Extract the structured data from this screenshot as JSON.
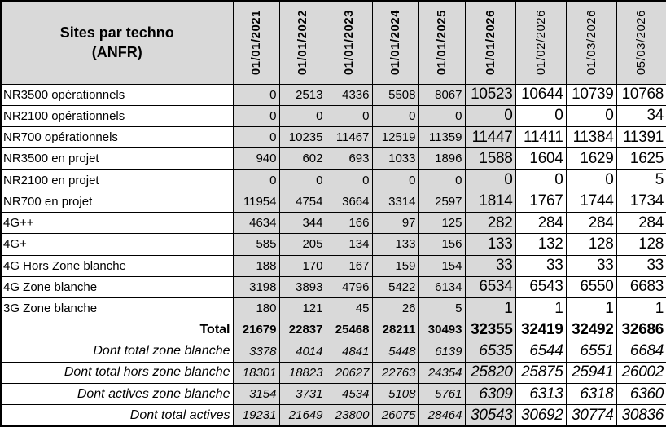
{
  "table": {
    "title": "Sites par techno\n(ANFR)",
    "columns": [
      {
        "date": "01/01/2021",
        "bold": true,
        "shaded": true,
        "large": false
      },
      {
        "date": "01/01/2022",
        "bold": true,
        "shaded": true,
        "large": false
      },
      {
        "date": "01/01/2023",
        "bold": true,
        "shaded": true,
        "large": false
      },
      {
        "date": "01/01/2024",
        "bold": true,
        "shaded": true,
        "large": false
      },
      {
        "date": "01/01/2025",
        "bold": true,
        "shaded": true,
        "large": false
      },
      {
        "date": "01/01/2026",
        "bold": true,
        "shaded": true,
        "large": true
      },
      {
        "date": "01/02/2026",
        "bold": false,
        "shaded": false,
        "large": true
      },
      {
        "date": "01/03/2026",
        "bold": false,
        "shaded": false,
        "large": true
      },
      {
        "date": "05/03/2026",
        "bold": false,
        "shaded": false,
        "large": true
      }
    ],
    "rows": [
      {
        "label": "NR3500 opérationnels",
        "style": "normal",
        "values": [
          0,
          2513,
          4336,
          5508,
          8067,
          10523,
          10644,
          10739,
          10768
        ]
      },
      {
        "label": "NR2100 opérationnels",
        "style": "normal",
        "values": [
          0,
          0,
          0,
          0,
          0,
          0,
          0,
          0,
          34
        ]
      },
      {
        "label": "NR700 opérationnels",
        "style": "normal",
        "values": [
          0,
          10235,
          11467,
          12519,
          11359,
          11447,
          11411,
          11384,
          11391
        ]
      },
      {
        "label": "NR3500 en projet",
        "style": "normal",
        "values": [
          940,
          602,
          693,
          1033,
          1896,
          1588,
          1604,
          1629,
          1625
        ]
      },
      {
        "label": "NR2100 en projet",
        "style": "normal",
        "values": [
          0,
          0,
          0,
          0,
          0,
          0,
          0,
          0,
          5
        ]
      },
      {
        "label": "NR700 en projet",
        "style": "normal",
        "values": [
          11954,
          4754,
          3664,
          3314,
          2597,
          1814,
          1767,
          1744,
          1734
        ]
      },
      {
        "label": "4G++",
        "style": "normal",
        "values": [
          4634,
          344,
          166,
          97,
          125,
          282,
          284,
          284,
          284
        ]
      },
      {
        "label": "4G+",
        "style": "normal",
        "values": [
          585,
          205,
          134,
          133,
          156,
          133,
          132,
          128,
          128
        ]
      },
      {
        "label": "4G Hors Zone blanche",
        "style": "normal",
        "values": [
          188,
          170,
          167,
          159,
          154,
          33,
          33,
          33,
          33
        ]
      },
      {
        "label": "4G Zone blanche",
        "style": "normal",
        "values": [
          3198,
          3893,
          4796,
          5422,
          6134,
          6534,
          6543,
          6550,
          6683
        ]
      },
      {
        "label": "3G Zone blanche",
        "style": "normal",
        "values": [
          180,
          121,
          45,
          26,
          5,
          1,
          1,
          1,
          1
        ]
      },
      {
        "label": "Total",
        "style": "total",
        "values": [
          21679,
          22837,
          25468,
          28211,
          30493,
          32355,
          32419,
          32492,
          32686
        ]
      },
      {
        "label": "Dont total zone blanche",
        "style": "dont",
        "values": [
          3378,
          4014,
          4841,
          5448,
          6139,
          6535,
          6544,
          6551,
          6684
        ]
      },
      {
        "label": "Dont total hors zone blanche",
        "style": "dont",
        "values": [
          18301,
          18823,
          20627,
          22763,
          24354,
          25820,
          25875,
          25941,
          26002
        ]
      },
      {
        "label": "Dont actives zone blanche",
        "style": "dont",
        "values": [
          3154,
          3731,
          4534,
          5108,
          5761,
          6309,
          6313,
          6318,
          6360
        ]
      },
      {
        "label": "Dont total actives",
        "style": "dont",
        "values": [
          19231,
          21649,
          23800,
          26075,
          28464,
          30543,
          30692,
          30774,
          30836
        ]
      }
    ],
    "colors": {
      "shaded_bg": "#d9d9d9",
      "border": "#000000",
      "text": "#000000"
    }
  }
}
